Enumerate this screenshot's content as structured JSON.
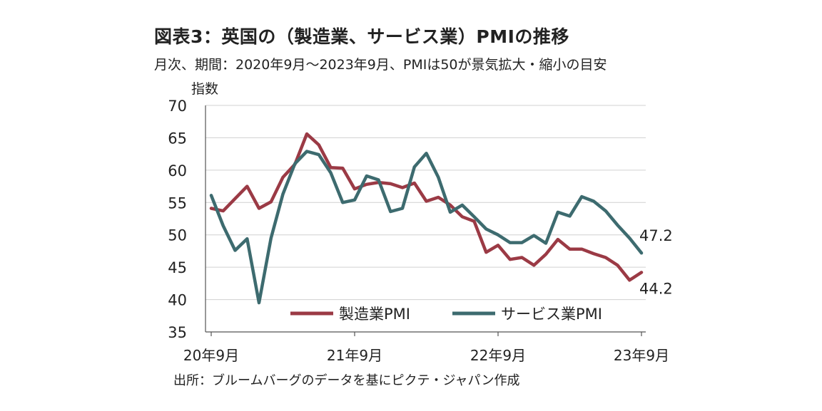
{
  "chart_data": {
    "type": "line",
    "title": "図表3：英国の（製造業、サービス業）PMIの推移",
    "subtitle": "月次、期間：2020年9月～2023年9月、PMIは50が景気拡大・縮小の目安",
    "ylabel": "指数",
    "source": "出所：ブルームバーグのデータを基にピクテ・ジャパン作成",
    "ylim": [
      35,
      70
    ],
    "yticks": [
      35,
      40,
      45,
      50,
      55,
      60,
      65,
      70
    ],
    "xtick_labels": [
      "20年9月",
      "21年9月",
      "22年9月",
      "23年9月"
    ],
    "xtick_index": [
      0,
      12,
      24,
      36
    ],
    "grid": true,
    "legend_position": "bottom-center",
    "series": [
      {
        "name": "製造業PMI",
        "color": "#9b3a45",
        "values": [
          54.1,
          53.7,
          55.6,
          57.5,
          54.1,
          55.1,
          58.9,
          60.9,
          65.6,
          63.9,
          60.4,
          60.3,
          57.1,
          57.8,
          58.1,
          57.9,
          57.3,
          58.0,
          55.2,
          55.8,
          54.6,
          52.8,
          52.1,
          47.3,
          48.4,
          46.2,
          46.5,
          45.3,
          47.0,
          49.3,
          47.8,
          47.8,
          47.1,
          46.5,
          45.3,
          43.0,
          44.2
        ],
        "end_label": "44.2"
      },
      {
        "name": "サービス業PMI",
        "color": "#3d6b6f",
        "values": [
          56.1,
          51.4,
          47.6,
          49.4,
          39.5,
          49.5,
          56.3,
          61.0,
          62.9,
          62.4,
          59.6,
          55.0,
          55.4,
          59.1,
          58.5,
          53.6,
          54.1,
          60.5,
          62.6,
          58.9,
          53.5,
          54.6,
          52.8,
          50.9,
          50.0,
          48.8,
          48.8,
          49.9,
          48.7,
          53.5,
          52.9,
          55.9,
          55.2,
          53.7,
          51.5,
          49.5,
          47.2
        ],
        "end_label": "47.2"
      }
    ]
  }
}
